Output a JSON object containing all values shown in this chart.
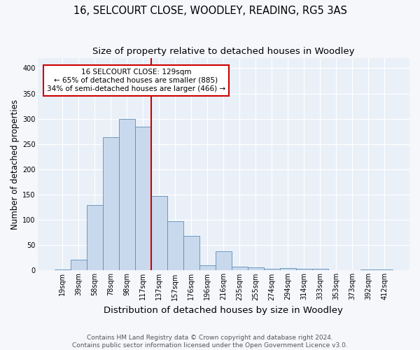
{
  "title_line1": "16, SELCOURT CLOSE, WOODLEY, READING, RG5 3AS",
  "title_line2": "Size of property relative to detached houses in Woodley",
  "xlabel": "Distribution of detached houses by size in Woodley",
  "ylabel": "Number of detached properties",
  "bar_labels": [
    "19sqm",
    "39sqm",
    "58sqm",
    "78sqm",
    "98sqm",
    "117sqm",
    "137sqm",
    "157sqm",
    "176sqm",
    "196sqm",
    "216sqm",
    "235sqm",
    "255sqm",
    "274sqm",
    "294sqm",
    "314sqm",
    "333sqm",
    "353sqm",
    "373sqm",
    "392sqm",
    "412sqm"
  ],
  "bar_values": [
    2,
    22,
    130,
    263,
    300,
    285,
    147,
    98,
    68,
    10,
    38,
    8,
    6,
    3,
    5,
    4,
    4,
    1,
    0,
    2,
    2
  ],
  "bar_color": "#c9d9ed",
  "bar_edgecolor": "#5b8db8",
  "bg_color": "#eaf0f8",
  "grid_color": "#ffffff",
  "vline_x": 5.5,
  "vline_color": "#cc0000",
  "annotation_text": "16 SELCOURT CLOSE: 129sqm\n← 65% of detached houses are smaller (885)\n34% of semi-detached houses are larger (466) →",
  "annotation_box_edgecolor": "#cc0000",
  "annotation_box_facecolor": "#ffffff",
  "footer_line1": "Contains HM Land Registry data © Crown copyright and database right 2024.",
  "footer_line2": "Contains public sector information licensed under the Open Government Licence v3.0.",
  "ylim": [
    0,
    420
  ],
  "yticks": [
    0,
    50,
    100,
    150,
    200,
    250,
    300,
    350,
    400
  ],
  "title_fontsize": 10.5,
  "subtitle_fontsize": 9.5,
  "xlabel_fontsize": 9.5,
  "ylabel_fontsize": 8.5,
  "tick_fontsize": 7,
  "annotation_fontsize": 7.5,
  "footer_fontsize": 6.5
}
